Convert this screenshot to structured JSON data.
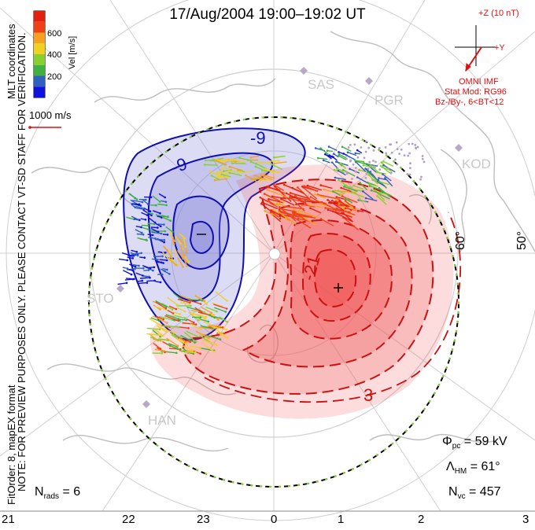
{
  "title": "17/Aug/2004 19:00–19:02 UT",
  "left_margin": {
    "mlt_label": "MLT coordinates",
    "notice": "NOTE: FOR PREVIEW PURPOSES ONLY. PLEASE CONTACT VT-SD STAFF FOR VERIFICATION.",
    "fit": "FitOrder: 8, mapEX format"
  },
  "colorbar": {
    "label": "Vel [m/s]",
    "ticks": [
      "600",
      "400",
      "200"
    ],
    "colors": [
      "#e32010",
      "#f04018",
      "#f8a020",
      "#f0d020",
      "#88d030",
      "#40b040",
      "#3060c0",
      "#1010e0"
    ]
  },
  "speed_ref": {
    "label": "1000 m/s"
  },
  "imf": {
    "z_label": "+Z (10 nT)",
    "y_label": "+Y",
    "source": "OMNI IMF",
    "model": "Stat Mod: RG96",
    "condition": "Bz-/By-, 6<BT<12",
    "color": "#e01010"
  },
  "stations": [
    "SAS",
    "PGR",
    "KOD",
    "STO",
    "HAN"
  ],
  "latitude_labels": [
    "60°",
    "50°"
  ],
  "contour_labels": [
    "-9",
    "-9",
    "-",
    "+",
    "-21",
    "3"
  ],
  "stats": {
    "phi_symbol": "Φ",
    "phi_sub": "pc",
    "phi_value": "= 59 kV",
    "lambda_symbol": "Λ",
    "lambda_sub": "HM",
    "lambda_value": "= 61°",
    "n_symbol": "N",
    "n_sub": "vc",
    "n_value": "= 457",
    "nrads_symbol": "N",
    "nrads_sub": "rads",
    "nrads_value": "= 6"
  },
  "mlt_ticks": [
    "21",
    "22",
    "23",
    "0",
    "1",
    "2",
    "3"
  ],
  "colors": {
    "positive_cell": "#f05050",
    "negative_cell": "#8080d8",
    "positive_contour": "#cc1010",
    "negative_contour": "#1010b0",
    "land": "#c0c0c0",
    "grid": "#cfcfcf"
  }
}
